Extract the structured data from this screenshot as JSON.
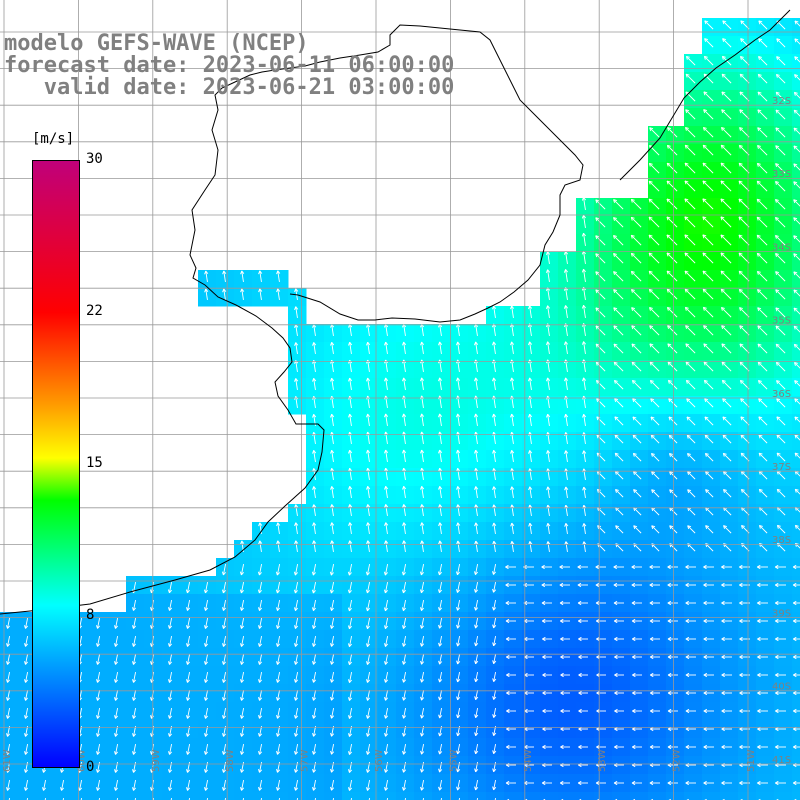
{
  "title": {
    "line1": "modelo GEFS-WAVE (NCEP)",
    "line2": "forecast date: 2023-06-11 06:00:00",
    "line3": "   valid date: 2023-06-21 03:00:00"
  },
  "colorbar": {
    "unit": "[m/s]",
    "ticks": [
      "30",
      "22",
      "15",
      "8",
      "0"
    ],
    "tick_values": [
      30,
      22,
      15,
      8,
      0
    ],
    "colors": [
      "#0000ff",
      "#00a0ff",
      "#00ffff",
      "#00ff00",
      "#ffff00",
      "#ff9900",
      "#ff0000",
      "#c0007a"
    ]
  },
  "lat_labels": [
    "32S",
    "33S",
    "34S",
    "35S",
    "36S",
    "37S",
    "38S",
    "39S",
    "40S",
    "41S"
  ],
  "lon_labels": [
    "61W",
    "60W",
    "59W",
    "58W",
    "57W",
    "56W",
    "55W",
    "54W",
    "53W",
    "52W",
    "51W"
  ],
  "colors": {
    "land": "#ffffff",
    "coastline": "#000000",
    "grid": "#999999",
    "arrows": "#ffffff",
    "labels": "#808080"
  }
}
